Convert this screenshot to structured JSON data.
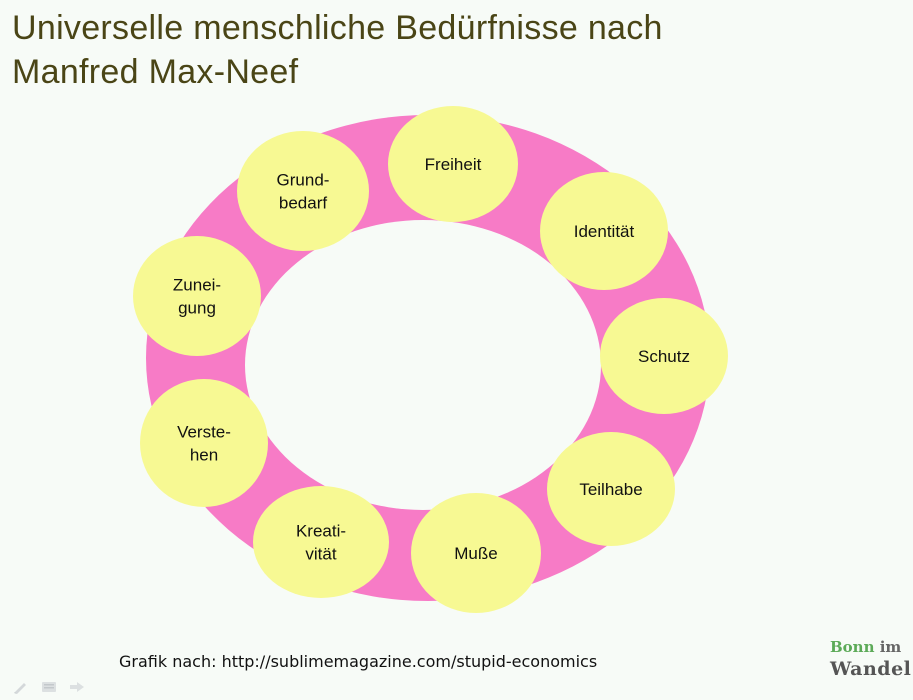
{
  "title": {
    "line1": "Universelle menschliche Bedürfnisse nach",
    "line2": "Manfred Max-Neef"
  },
  "colors": {
    "ring": "#f77bc6",
    "node": "#f7f993",
    "title": "#4a4516",
    "background": "#f7fbf7"
  },
  "nodes": [
    {
      "id": "grundbedarf",
      "lines": [
        "Grund-",
        "bedarf"
      ]
    },
    {
      "id": "freiheit",
      "lines": [
        "Freiheit"
      ]
    },
    {
      "id": "identitaet",
      "lines": [
        "Identität"
      ]
    },
    {
      "id": "schutz",
      "lines": [
        "Schutz"
      ]
    },
    {
      "id": "teilhabe",
      "lines": [
        "Teilhabe"
      ]
    },
    {
      "id": "musse",
      "lines": [
        "Muße"
      ]
    },
    {
      "id": "kreativitaet",
      "lines": [
        "Kreati-",
        "vität"
      ]
    },
    {
      "id": "verstehen",
      "lines": [
        "Verste-",
        "hen"
      ]
    },
    {
      "id": "zuneigung",
      "lines": [
        "Zunei-",
        "gung"
      ]
    }
  ],
  "caption": "Grafik nach: http://sublimemagazine.com/stupid-economics",
  "logo": {
    "word1": "Bonn",
    "word2": "im",
    "word3": "Wandel"
  },
  "nav": {
    "pen_icon": "pen-icon",
    "menu_icon": "menu-icon",
    "next_icon": "arrow-right-icon"
  }
}
